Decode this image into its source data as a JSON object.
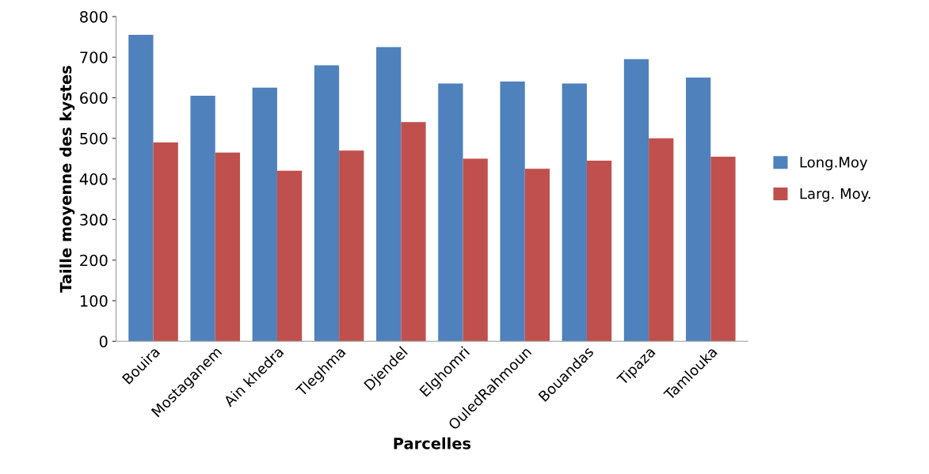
{
  "chart_data": {
    "type": "bar",
    "xlabel": "Parcelles",
    "ylabel": "Taille moyenne des kystes",
    "categories": [
      "Bouira",
      "Mostaganem",
      "Ain khedra",
      "Tleghma",
      "Djendel",
      "Elghomri",
      "OuledRahmoun",
      "Bouandas",
      "Tipaza",
      "Tamlouka"
    ],
    "series": [
      {
        "name": "Long.Moy",
        "color": "#4f81bd",
        "values": [
          755,
          605,
          625,
          680,
          725,
          635,
          640,
          635,
          695,
          650
        ]
      },
      {
        "name": "Larg. Moy.",
        "color": "#c0504d",
        "values": [
          490,
          465,
          420,
          470,
          540,
          450,
          425,
          445,
          500,
          455
        ]
      }
    ],
    "ylim": [
      0,
      800
    ],
    "yticks": [
      0,
      100,
      200,
      300,
      400,
      500,
      600,
      700,
      800
    ],
    "grid": false,
    "legend": "right"
  }
}
